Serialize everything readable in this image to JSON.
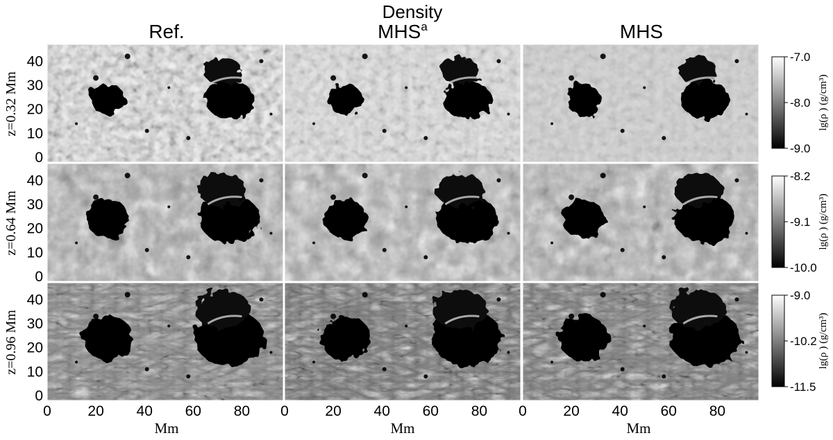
{
  "figure": {
    "title": "Density",
    "columns": [
      {
        "label": "Ref.",
        "sup": ""
      },
      {
        "label": "MHS",
        "sup": "a"
      },
      {
        "label": "MHS",
        "sup": ""
      }
    ],
    "rows": [
      {
        "label": "z=0.32 Mm",
        "colorbar": {
          "ticks": [
            "-7.0",
            "-8.0",
            "-9.0"
          ],
          "label": "lg(ρ ) (g/cm³)"
        }
      },
      {
        "label": "z=0.64 Mm",
        "colorbar": {
          "ticks": [
            "-8.2",
            "-9.1",
            "-10.0"
          ],
          "label": "lg(ρ ) (g/cm³)"
        }
      },
      {
        "label": "z=0.96 Mm",
        "colorbar": {
          "ticks": [
            "-9.0",
            "-10.2",
            "-11.5"
          ],
          "label": "lg(ρ ) (g/cm³)"
        }
      }
    ],
    "y_ticks": [
      "0",
      "10",
      "20",
      "30",
      "40"
    ],
    "x_ticks": [
      "0",
      "20",
      "40",
      "60",
      "80"
    ],
    "x_label": "Mm",
    "colormap": "grayscale",
    "colors": {
      "background": "#ffffff",
      "text": "#000000"
    }
  }
}
